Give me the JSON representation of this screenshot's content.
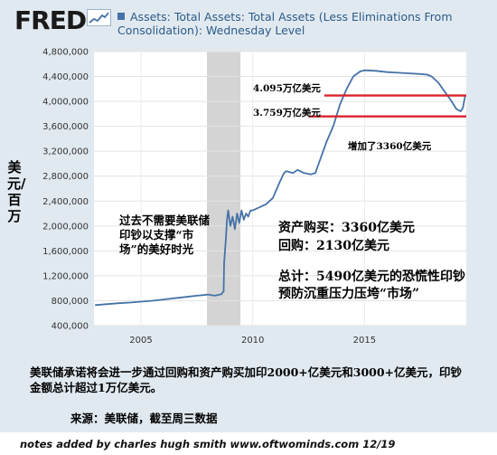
{
  "header": {
    "logo": "FRED",
    "title": "Assets: Total Assets: Total Assets (Less Eliminations From Consolidation): Wednesday Level"
  },
  "chart_data": {
    "type": "line",
    "title": "Assets: Total Assets: Total Assets (Less Eliminations From Consolidation): Wednesday Level",
    "ylabel": "美元/百万",
    "xlabel": "",
    "ylim": [
      400000,
      4800000
    ],
    "xlim": [
      2002.9,
      2019.55
    ],
    "grid": true,
    "y_ticks": [
      400000,
      800000,
      1200000,
      1600000,
      2000000,
      2400000,
      2800000,
      3200000,
      3600000,
      4000000,
      4400000,
      4800000
    ],
    "y_tick_labels": [
      "400,000",
      "800,000",
      "1,200,000",
      "1,600,000",
      "2,000,000",
      "2,400,000",
      "2,800,000",
      "3,200,000",
      "3,600,000",
      "4,000,000",
      "4,400,000",
      "4,800,000"
    ],
    "x_ticks": [
      2005,
      2010,
      2015
    ],
    "x_tick_labels": [
      "2005",
      "2010",
      "2015"
    ],
    "recession_band": [
      2007.95,
      2009.45
    ],
    "series": [
      {
        "color": "#4572a7",
        "x": [
          2002.95,
          2003.5,
          2004,
          2004.5,
          2005,
          2005.5,
          2006,
          2006.5,
          2007,
          2007.5,
          2007.75,
          2008.0,
          2008.3,
          2008.6,
          2008.7,
          2008.72,
          2008.8,
          2008.85,
          2008.9,
          2009.0,
          2009.1,
          2009.2,
          2009.3,
          2009.4,
          2009.5,
          2009.6,
          2009.7,
          2009.8,
          2009.9,
          2010.0,
          2010.3,
          2010.6,
          2010.9,
          2011.2,
          2011.4,
          2011.5,
          2011.8,
          2012.0,
          2012.3,
          2012.6,
          2012.8,
          2013.0,
          2013.3,
          2013.6,
          2013.9,
          2014.2,
          2014.5,
          2014.8,
          2015.0,
          2015.5,
          2016.0,
          2016.5,
          2017.0,
          2017.5,
          2017.8,
          2018.0,
          2018.3,
          2018.6,
          2018.9,
          2019.1,
          2019.3,
          2019.4,
          2019.5
        ],
        "y": [
          730000,
          745000,
          760000,
          770000,
          785000,
          800000,
          820000,
          840000,
          860000,
          880000,
          890000,
          900000,
          880000,
          905000,
          950000,
          1400000,
          1800000,
          2100000,
          2250000,
          2000000,
          2150000,
          1950000,
          2200000,
          2050000,
          2250000,
          2100000,
          2200000,
          2150000,
          2250000,
          2250000,
          2300000,
          2350000,
          2450000,
          2700000,
          2850000,
          2880000,
          2850000,
          2900000,
          2850000,
          2830000,
          2850000,
          3050000,
          3350000,
          3600000,
          3950000,
          4200000,
          4400000,
          4480000,
          4500000,
          4490000,
          4470000,
          4460000,
          4450000,
          4440000,
          4430000,
          4400000,
          4300000,
          4150000,
          4000000,
          3880000,
          3840000,
          3900000,
          4095000
        ]
      }
    ],
    "reference_lines": [
      {
        "y": 4095000,
        "x_from": 2013.2,
        "x_to": 2019.55,
        "color": "#d9242c"
      },
      {
        "y": 3759000,
        "x_from": 2012.5,
        "x_to": 2019.55,
        "color": "#d9242c"
      }
    ]
  },
  "annotations": {
    "past": "过去不需要美联储印钞以支撑“市场”的美好时光",
    "level_4095": "4.095万亿美元",
    "level_3759": "3.759万亿美元",
    "increase": "增加了3360亿美元",
    "asset_purchase": "资产购买：3360亿美元",
    "repo": "回购：2130亿美元",
    "total": "总计：5490亿美元的恐慌性印钞预防沉重压力压垮“市场”",
    "bottom": "美联储承诺将会进一步通过回购和资产购买加印2000+亿美元和3000+亿美元，印钞金额总计超过1万亿美元。"
  },
  "footer": {
    "source": "来源：美联储，截至周三数据",
    "notes": "notes added by charles hugh smith  www.oftwominds.com  12/19"
  },
  "colors": {
    "panel_bg": "#e1e9f0",
    "series": "#4572a7",
    "reference": "#d9242c",
    "recession": "#d4d4d4"
  }
}
